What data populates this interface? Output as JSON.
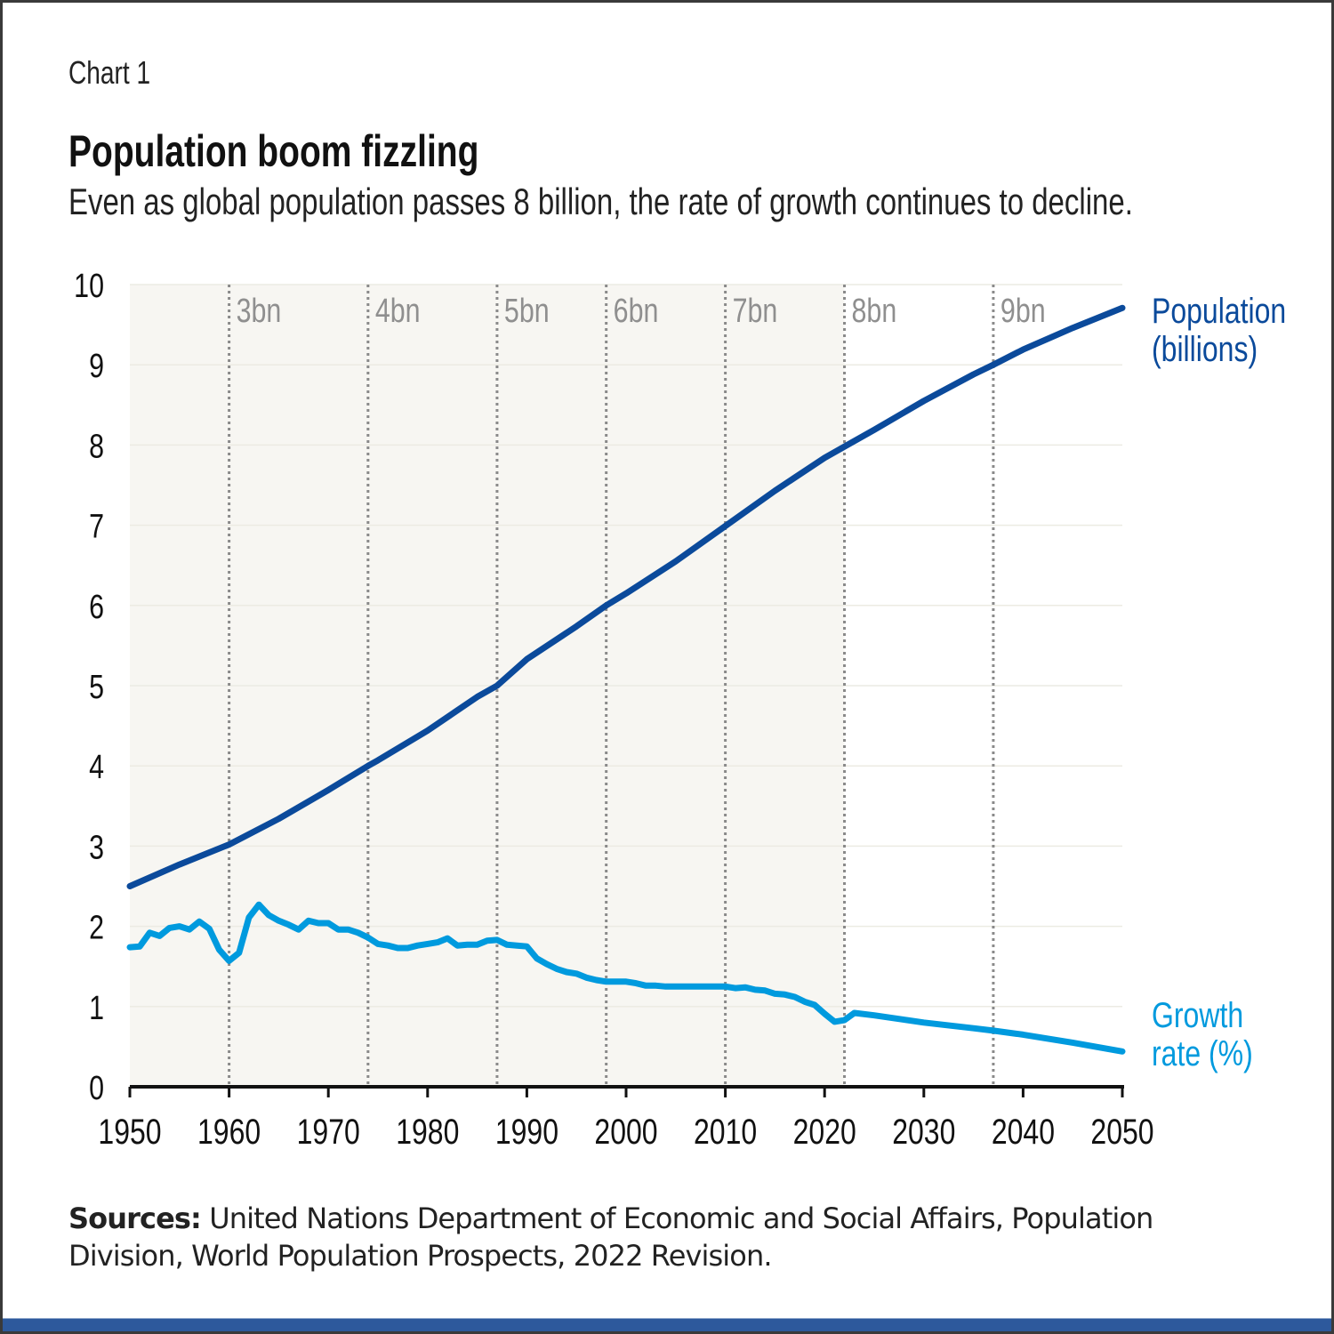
{
  "label": "Chart 1",
  "title": "Population boom fizzling",
  "subtitle": "Even as global population passes 8 billion, the rate of growth continues to decline.",
  "source": {
    "bold": "Sources:",
    "text": " United Nations Department of Economic and Social Affairs, Population Division, World Population Prospects, 2022 Revision."
  },
  "colors": {
    "population": "#0b4a9b",
    "growth": "#009ade",
    "shade": "#f7f6f2",
    "milestone": "#8a8a8a",
    "bottom_bar": "#2d599c"
  },
  "chart_data": {
    "type": "line",
    "title": "Population boom fizzling",
    "xlim": [
      1950,
      2050
    ],
    "ylim": [
      0,
      10
    ],
    "x_ticks": [
      "1950",
      "1960",
      "1970",
      "1980",
      "1990",
      "2000",
      "2010",
      "2020",
      "2030",
      "2040",
      "2050"
    ],
    "y_ticks": [
      "0",
      "1",
      "2",
      "3",
      "4",
      "5",
      "6",
      "7",
      "8",
      "9",
      "10"
    ],
    "grid": "horizontal",
    "shaded_range": [
      1950,
      2022
    ],
    "milestones": [
      {
        "label": "3bn",
        "year": 1960
      },
      {
        "label": "4bn",
        "year": 1974
      },
      {
        "label": "5bn",
        "year": 1987
      },
      {
        "label": "6bn",
        "year": 1998
      },
      {
        "label": "7bn",
        "year": 2010
      },
      {
        "label": "8bn",
        "year": 2022
      },
      {
        "label": "9bn",
        "year": 2037
      }
    ],
    "series": [
      {
        "name": "Population (billions)",
        "label_lines": [
          "Population",
          "(billions)"
        ],
        "x": [
          1950,
          1955,
          1960,
          1965,
          1970,
          1974,
          1975,
          1980,
          1985,
          1987,
          1990,
          1995,
          1998,
          2000,
          2005,
          2010,
          2015,
          2020,
          2022,
          2025,
          2030,
          2035,
          2037,
          2040,
          2045,
          2050
        ],
        "y": [
          2.5,
          2.77,
          3.02,
          3.34,
          3.7,
          4.0,
          4.07,
          4.44,
          4.86,
          5.0,
          5.33,
          5.74,
          6.0,
          6.15,
          6.55,
          6.99,
          7.43,
          7.84,
          7.98,
          8.19,
          8.55,
          8.88,
          9.0,
          9.19,
          9.46,
          9.71
        ]
      },
      {
        "name": "Growth rate (%)",
        "label_lines": [
          "Growth",
          "rate (%)"
        ],
        "x": [
          1950,
          1951,
          1952,
          1953,
          1954,
          1955,
          1956,
          1957,
          1958,
          1959,
          1960,
          1961,
          1962,
          1963,
          1964,
          1965,
          1966,
          1967,
          1968,
          1969,
          1970,
          1971,
          1972,
          1973,
          1974,
          1975,
          1976,
          1977,
          1978,
          1979,
          1980,
          1981,
          1982,
          1983,
          1984,
          1985,
          1986,
          1987,
          1988,
          1989,
          1990,
          1991,
          1992,
          1993,
          1994,
          1995,
          1996,
          1997,
          1998,
          1999,
          2000,
          2001,
          2002,
          2003,
          2004,
          2005,
          2010,
          2011,
          2012,
          2013,
          2014,
          2015,
          2016,
          2017,
          2018,
          2019,
          2020,
          2021,
          2022,
          2023,
          2025,
          2030,
          2035,
          2037,
          2040,
          2045,
          2050
        ],
        "y": [
          1.74,
          1.75,
          1.92,
          1.88,
          1.98,
          2.0,
          1.96,
          2.06,
          1.97,
          1.71,
          1.57,
          1.67,
          2.11,
          2.27,
          2.14,
          2.07,
          2.02,
          1.96,
          2.07,
          2.04,
          2.04,
          1.96,
          1.96,
          1.92,
          1.86,
          1.78,
          1.76,
          1.73,
          1.73,
          1.76,
          1.78,
          1.8,
          1.85,
          1.76,
          1.77,
          1.77,
          1.82,
          1.83,
          1.77,
          1.76,
          1.75,
          1.6,
          1.53,
          1.47,
          1.43,
          1.41,
          1.36,
          1.33,
          1.31,
          1.31,
          1.31,
          1.29,
          1.26,
          1.26,
          1.25,
          1.25,
          1.25,
          1.23,
          1.24,
          1.21,
          1.2,
          1.16,
          1.15,
          1.12,
          1.06,
          1.02,
          0.91,
          0.81,
          0.83,
          0.92,
          0.89,
          0.8,
          0.73,
          0.7,
          0.65,
          0.55,
          0.44
        ]
      }
    ]
  }
}
